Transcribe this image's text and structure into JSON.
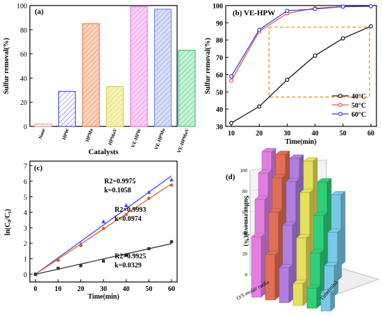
{
  "chart_data": [
    {
      "panel": "(a)",
      "type": "bar",
      "title": "",
      "xlabel": "Catalysts",
      "ylabel": "Sulfur removal(%)",
      "ylim": [
        0,
        100
      ],
      "yticks": [
        "0",
        "20",
        "40",
        "60",
        "80",
        "100"
      ],
      "categories": [
        "None",
        "HPW",
        "HPMo",
        "HPMoV",
        "VE-HPW",
        "VE-HPMo",
        "VE-HPMoV"
      ],
      "values": [
        2,
        29,
        85,
        33,
        99,
        97,
        63
      ],
      "bar_colors": [
        "#e8a0a8",
        "#4a55d8",
        "#ef7a45",
        "#d9d24a",
        "#e67ae6",
        "#7a8ee0",
        "#42c07a"
      ],
      "hatch_colors": [
        "#ffffff",
        "#ffffff",
        "#fbd3bd",
        "#f6f2b3",
        "#f9d1f9",
        "#d6defa",
        "#c6f0d6"
      ],
      "grid": false
    },
    {
      "panel": "(b) VE-HPW",
      "type": "line",
      "xlabel": "Time(min)",
      "ylabel": "Sulfur removal(%)",
      "x": [
        10,
        20,
        30,
        40,
        50,
        60
      ],
      "xlim": [
        10,
        60
      ],
      "ylim": [
        30,
        100
      ],
      "xticks": [
        "10",
        "20",
        "30",
        "40",
        "50",
        "60"
      ],
      "yticks": [
        "30",
        "40",
        "50",
        "60",
        "70",
        "80",
        "90",
        "100"
      ],
      "legend_position": "bottom-right",
      "series": [
        {
          "name": "40°C",
          "values": [
            32,
            41.5,
            57,
            71,
            81,
            88
          ],
          "color": "#111111",
          "marker": "circle"
        },
        {
          "name": "50°C",
          "values": [
            56.5,
            85,
            95.5,
            98.5,
            99.3,
            99.5
          ],
          "color": "#e05a4a",
          "marker": "circle"
        },
        {
          "name": "60°C",
          "values": [
            59,
            86,
            97,
            98,
            99.4,
            99.6
          ],
          "color": "#3a3ae0",
          "marker": "circle"
        }
      ],
      "annotation": "dashed orange box from 20 to 60 min, 47 to 88 %"
    },
    {
      "panel": "(c)",
      "type": "scatter",
      "xlabel": "Time(min)",
      "ylabel": "ln(C0/Ct)",
      "ylabel_main": "ln(C",
      "ylabel_sub0": "0",
      "ylabel_mid": "/C",
      "ylabel_sub1": "t",
      "ylabel_end": ")",
      "x": [
        0,
        10,
        20,
        30,
        40,
        50,
        60
      ],
      "xlim": [
        0,
        60
      ],
      "ylim": [
        0,
        7
      ],
      "xticks": [
        "0",
        "10",
        "20",
        "30",
        "40",
        "50",
        "60"
      ],
      "yticks": [
        "0",
        "1",
        "2",
        "3",
        "4",
        "5",
        "6",
        "7"
      ],
      "series": [
        {
          "values": [
            0,
            0.95,
            1.95,
            3.4,
            4.45,
            5.3,
            6.1
          ],
          "color": "#3a4ee0",
          "marker": "triangle",
          "fit_slope": 0.1058,
          "label_r2": "R2=0.9975",
          "label_k": "k=0.1058"
        },
        {
          "values": [
            0,
            0.9,
            1.85,
            2.95,
            3.85,
            4.9,
            5.75
          ],
          "color": "#e05a30",
          "marker": "circle",
          "fit_slope": 0.0974,
          "label_r2": "R2=0.9993",
          "label_k": "k=0.0974"
        },
        {
          "values": [
            0,
            0.38,
            0.55,
            0.85,
            1.25,
            1.65,
            2.1
          ],
          "color": "#333333",
          "marker": "square",
          "fit_slope": 0.0329,
          "label_r2": "R2=0.9925",
          "label_k": "k=0.0329"
        }
      ]
    },
    {
      "panel": "(d)",
      "type": "bar3d",
      "zlabel": "Sulfur removal(%)",
      "xlabel": "O/S molar radio",
      "ylabel": "Time(min)",
      "zticks": [
        "0",
        "20",
        "40",
        "60",
        "80",
        "100"
      ],
      "rows": [
        {
          "color": "#e27ee2",
          "values": [
            60,
            82,
            93,
            99
          ]
        },
        {
          "color": "#e26f55",
          "values": [
            45,
            72,
            91,
            99
          ]
        },
        {
          "color": "#b07fe0",
          "values": [
            35,
            62,
            90,
            98
          ]
        },
        {
          "color": "#e6e05a",
          "values": [
            22,
            52,
            82,
            98
          ]
        },
        {
          "color": "#2fd07a",
          "values": [
            20,
            40,
            62,
            80
          ]
        },
        {
          "color": "#78c8e8",
          "values": [
            18,
            30,
            48,
            70
          ]
        }
      ]
    }
  ]
}
